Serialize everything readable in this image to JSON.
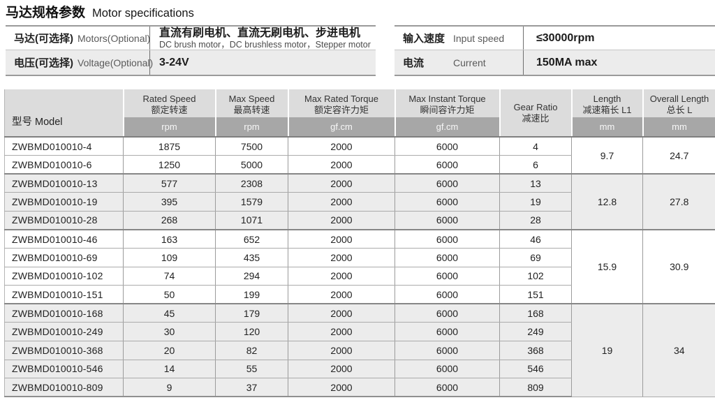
{
  "title": {
    "zh": "马达规格参数",
    "en": "Motor specifications"
  },
  "info_left": {
    "rows": [
      {
        "label_zh": "马达(可选择)",
        "label_en": "Motors(Optional)",
        "value": "直流有刷电机、直流无刷电机、步进电机",
        "value_sub": "DC brush motor，DC brushless motor，Stepper motor"
      },
      {
        "label_zh": "电压(可选择)",
        "label_en": "Voltage(Optional)",
        "value": "3-24V",
        "value_sub": ""
      }
    ]
  },
  "info_right": {
    "rows": [
      {
        "label_zh": "输入速度",
        "label_en": "Input speed",
        "value": "≤30000rpm"
      },
      {
        "label_zh": "电流",
        "label_en": "Current",
        "value": "150MA max"
      }
    ]
  },
  "table": {
    "model_header": {
      "zh": "型号",
      "en": "Model"
    },
    "columns": [
      {
        "en": "Rated Speed",
        "zh": "额定转速",
        "unit": "rpm"
      },
      {
        "en": "Max Speed",
        "zh": "最高转速",
        "unit": "rpm"
      },
      {
        "en": "Max Rated Torque",
        "zh": "额定容许力矩",
        "unit": "gf.cm"
      },
      {
        "en": "Max Instant Torque",
        "zh": "瞬间容许力矩",
        "unit": "gf.cm"
      },
      {
        "en": "Gear Ratio",
        "zh": "减速比",
        "unit": ""
      },
      {
        "en": "Length",
        "zh": "减速箱长 L1",
        "unit": "mm"
      },
      {
        "en": "Overall Length",
        "zh": "总长 L",
        "unit": "mm"
      }
    ],
    "groups": [
      {
        "length": "9.7",
        "overall_length": "24.7",
        "rows": [
          {
            "model": "ZWBMD010010-4",
            "rated_speed": "1875",
            "max_speed": "7500",
            "max_rated_torque": "2000",
            "max_instant_torque": "6000",
            "gear_ratio": "4"
          },
          {
            "model": "ZWBMD010010-6",
            "rated_speed": "1250",
            "max_speed": "5000",
            "max_rated_torque": "2000",
            "max_instant_torque": "6000",
            "gear_ratio": "6"
          }
        ]
      },
      {
        "length": "12.8",
        "overall_length": "27.8",
        "rows": [
          {
            "model": "ZWBMD010010-13",
            "rated_speed": "577",
            "max_speed": "2308",
            "max_rated_torque": "2000",
            "max_instant_torque": "6000",
            "gear_ratio": "13"
          },
          {
            "model": "ZWBMD010010-19",
            "rated_speed": "395",
            "max_speed": "1579",
            "max_rated_torque": "2000",
            "max_instant_torque": "6000",
            "gear_ratio": "19"
          },
          {
            "model": "ZWBMD010010-28",
            "rated_speed": "268",
            "max_speed": "1071",
            "max_rated_torque": "2000",
            "max_instant_torque": "6000",
            "gear_ratio": "28"
          }
        ]
      },
      {
        "length": "15.9",
        "overall_length": "30.9",
        "rows": [
          {
            "model": "ZWBMD010010-46",
            "rated_speed": "163",
            "max_speed": "652",
            "max_rated_torque": "2000",
            "max_instant_torque": "6000",
            "gear_ratio": "46"
          },
          {
            "model": "ZWBMD010010-69",
            "rated_speed": "109",
            "max_speed": "435",
            "max_rated_torque": "2000",
            "max_instant_torque": "6000",
            "gear_ratio": "69"
          },
          {
            "model": "ZWBMD010010-102",
            "rated_speed": "74",
            "max_speed": "294",
            "max_rated_torque": "2000",
            "max_instant_torque": "6000",
            "gear_ratio": "102"
          },
          {
            "model": "ZWBMD010010-151",
            "rated_speed": "50",
            "max_speed": "199",
            "max_rated_torque": "2000",
            "max_instant_torque": "6000",
            "gear_ratio": "151"
          }
        ]
      },
      {
        "length": "19",
        "overall_length": "34",
        "rows": [
          {
            "model": "ZWBMD010010-168",
            "rated_speed": "45",
            "max_speed": "179",
            "max_rated_torque": "2000",
            "max_instant_torque": "6000",
            "gear_ratio": "168"
          },
          {
            "model": "ZWBMD010010-249",
            "rated_speed": "30",
            "max_speed": "120",
            "max_rated_torque": "2000",
            "max_instant_torque": "6000",
            "gear_ratio": "249"
          },
          {
            "model": "ZWBMD010010-368",
            "rated_speed": "20",
            "max_speed": "82",
            "max_rated_torque": "2000",
            "max_instant_torque": "6000",
            "gear_ratio": "368"
          },
          {
            "model": "ZWBMD010010-546",
            "rated_speed": "14",
            "max_speed": "55",
            "max_rated_torque": "2000",
            "max_instant_torque": "6000",
            "gear_ratio": "546"
          },
          {
            "model": "ZWBMD010010-809",
            "rated_speed": "9",
            "max_speed": "37",
            "max_rated_torque": "2000",
            "max_instant_torque": "6000",
            "gear_ratio": "809"
          }
        ]
      }
    ]
  },
  "colors": {
    "header_bg": "#dcdcdc",
    "unit_band_bg": "#a7a7a7",
    "unit_text": "#f7f7f7",
    "row_alt_bg": "#ececec",
    "border_gray": "#9b9b9b"
  }
}
